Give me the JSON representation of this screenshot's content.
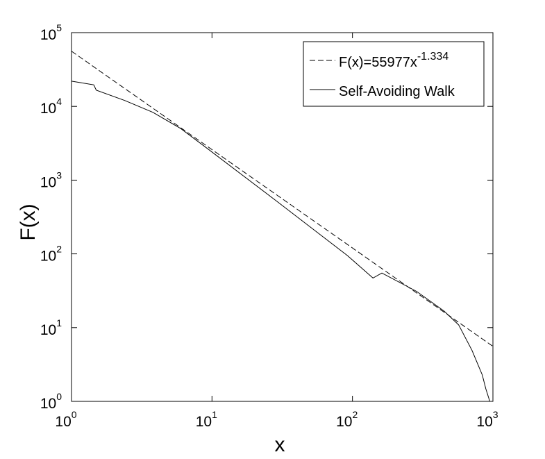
{
  "chart_data": {
    "type": "line",
    "xlabel": "x",
    "ylabel": "F(x)",
    "xscale": "log",
    "yscale": "log",
    "xlim": [
      1,
      1000
    ],
    "ylim": [
      1,
      100000
    ],
    "xticks": [
      {
        "value": 1,
        "label": "10",
        "exponent": "0"
      },
      {
        "value": 10,
        "label": "10",
        "exponent": "1"
      },
      {
        "value": 100,
        "label": "10",
        "exponent": "2"
      },
      {
        "value": 1000,
        "label": "10",
        "exponent": "3"
      }
    ],
    "yticks": [
      {
        "value": 1,
        "label": "10",
        "exponent": "0"
      },
      {
        "value": 10,
        "label": "10",
        "exponent": "1"
      },
      {
        "value": 100,
        "label": "10",
        "exponent": "2"
      },
      {
        "value": 1000,
        "label": "10",
        "exponent": "3"
      },
      {
        "value": 10000,
        "label": "10",
        "exponent": "4"
      },
      {
        "value": 100000,
        "label": "10",
        "exponent": "5"
      }
    ],
    "legend": "top-right",
    "series": [
      {
        "name": "F(x)=55977x",
        "name_exponent": "-1.334",
        "color": "#000000",
        "dash": "dashed",
        "x": [
          1,
          1000
        ],
        "values": [
          55977,
          5.57
        ]
      },
      {
        "name": "Self-Avoiding Walk",
        "color": "#000000",
        "dash": "solid",
        "x": [
          1,
          1.44,
          1.5,
          2.4,
          3.8,
          6,
          9.4,
          29,
          92,
          140,
          162,
          286,
          450,
          570,
          710,
          840,
          890,
          950
        ],
        "values": [
          22000,
          19600,
          16600,
          12000,
          8300,
          5000,
          2630,
          515,
          95,
          47,
          55,
          31,
          16.7,
          10.9,
          4.9,
          2.28,
          1.48,
          1.0
        ]
      }
    ]
  }
}
